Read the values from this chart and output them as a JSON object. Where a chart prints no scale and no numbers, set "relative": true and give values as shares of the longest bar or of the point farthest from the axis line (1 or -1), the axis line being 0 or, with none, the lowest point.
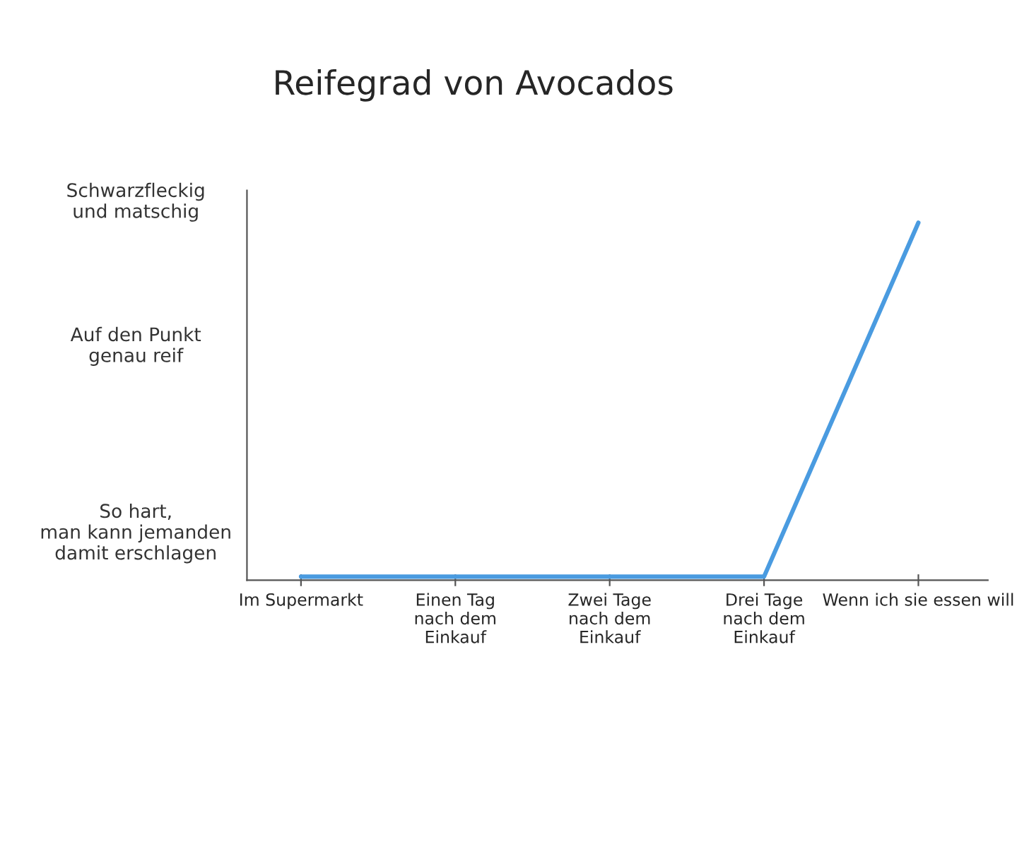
{
  "chart_data": {
    "type": "line",
    "title": "Reifegrad von Avocados",
    "relative": true,
    "categories": [
      "Im Supermarkt",
      "Einen Tag\nnach dem\nEinkauf",
      "Zwei Tage\nnach dem\nEinkauf",
      "Drei Tage\nnach dem\nEinkauf",
      "Wenn ich sie essen will"
    ],
    "series": [
      {
        "color": "#4a9be0",
        "values": [
          0.01,
          0.01,
          0.01,
          0.01,
          1
        ]
      }
    ],
    "annotations": [
      "Schwarzfleckig\nund matschig",
      "Auf den Punkt\ngenau reif",
      "So hart,\nman kann jemanden\ndamit erschlagen"
    ],
    "grid": false,
    "legend": false,
    "marker": "none",
    "line_style": "solid"
  }
}
